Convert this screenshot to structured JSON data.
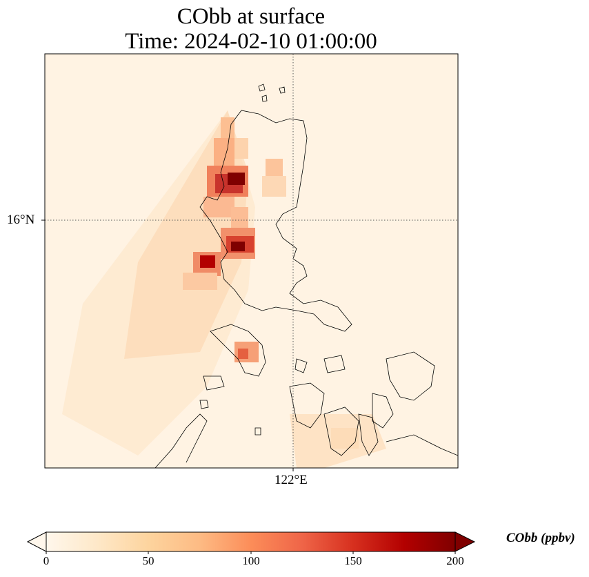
{
  "title": {
    "line1": "CObb at surface",
    "line2": "Time: 2024-02-10 01:00:00"
  },
  "axes": {
    "lat_tick": "16°N",
    "lon_tick": "122°E"
  },
  "colorbar": {
    "label": "CObb (ppbv)",
    "min": 0,
    "max": 200,
    "ticks": [
      "0",
      "50",
      "100",
      "150",
      "200"
    ],
    "colormap": "OrRd",
    "colors": [
      "#fff7ec",
      "#fee8c8",
      "#fdd49e",
      "#fdbb84",
      "#fc8d59",
      "#ef6548",
      "#d7301f",
      "#b30000",
      "#7f0000"
    ]
  },
  "map": {
    "background": "#fff3e3",
    "gridline_style": "dotted",
    "coastline_color": "#000000"
  }
}
